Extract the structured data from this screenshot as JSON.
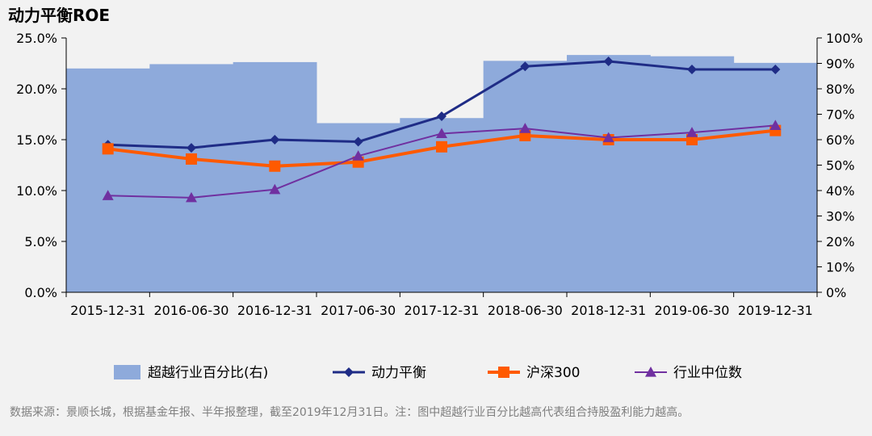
{
  "title": "动力平衡ROE",
  "source_note": "数据来源：景顺长城，根据基金年报、半年报整理，截至2019年12月31日。注：图中超越行业百分比越高代表组合持股盈利能力越高。",
  "colors": {
    "background": "#f2f2f2",
    "bar": "#8eaadb",
    "balance": "#1f2c86",
    "hs300": "#ff5a00",
    "median": "#7030a0"
  },
  "chart_data": {
    "type": "bar+line",
    "categories": [
      "2015-12-31",
      "2016-06-30",
      "2016-12-31",
      "2017-06-30",
      "2017-12-31",
      "2018-06-30",
      "2018-12-31",
      "2019-06-30",
      "2019-12-31"
    ],
    "left_axis": {
      "min": 0,
      "max": 25,
      "step": 5,
      "tick_labels": [
        "0.0%",
        "5.0%",
        "10.0%",
        "15.0%",
        "20.0%",
        "25.0%"
      ]
    },
    "right_axis": {
      "min": 0,
      "max": 100,
      "step": 10,
      "tick_labels": [
        "0%",
        "10%",
        "20%",
        "30%",
        "40%",
        "50%",
        "60%",
        "70%",
        "80%",
        "90%",
        "100%"
      ]
    },
    "bars": {
      "name": "超越行业百分比(右)",
      "axis": "right",
      "values": [
        88,
        89.7,
        90.5,
        66.5,
        68.5,
        91,
        93.3,
        92.8,
        90.2
      ]
    },
    "series": [
      {
        "name": "动力平衡",
        "axis": "left",
        "marker": "diamond",
        "values": [
          14.5,
          14.2,
          15.0,
          14.8,
          17.3,
          22.2,
          22.7,
          21.9,
          21.9
        ]
      },
      {
        "name": "沪深300",
        "axis": "left",
        "marker": "square",
        "values": [
          14.1,
          13.1,
          12.4,
          12.8,
          14.3,
          15.4,
          15.0,
          15.0,
          15.9
        ]
      },
      {
        "name": "行业中位数",
        "axis": "left",
        "marker": "triangle",
        "values": [
          9.5,
          9.3,
          10.1,
          13.4,
          15.6,
          16.1,
          15.2,
          15.7,
          16.4
        ]
      }
    ],
    "legend_position": "bottom"
  }
}
